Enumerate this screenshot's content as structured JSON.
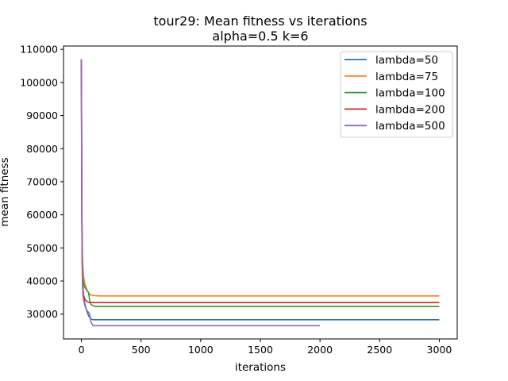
{
  "chart_data": {
    "type": "line",
    "title_lines": [
      "tour29: Mean fitness vs iterations",
      "alpha=0.5 k=6"
    ],
    "xlabel": "iterations",
    "ylabel": "mean fitness",
    "xlim": [
      -150,
      3150
    ],
    "ylim": [
      22500,
      111000
    ],
    "xticks": [
      0,
      500,
      1000,
      1500,
      2000,
      2500,
      3000
    ],
    "yticks": [
      30000,
      40000,
      50000,
      60000,
      70000,
      80000,
      90000,
      100000,
      110000
    ],
    "xtick_labels": [
      "0",
      "500",
      "1000",
      "1500",
      "2000",
      "2500",
      "3000"
    ],
    "ytick_labels": [
      "30000",
      "40000",
      "50000",
      "60000",
      "70000",
      "80000",
      "90000",
      "100000",
      "110000"
    ],
    "grid": false,
    "legend_position": "top-right",
    "series": [
      {
        "name": "lambda=50",
        "color": "#1f77b4",
        "x": [
          0,
          2,
          4,
          7,
          10,
          15,
          20,
          30,
          40,
          50,
          60,
          70,
          80,
          100,
          3000
        ],
        "y": [
          107000,
          80000,
          60000,
          48000,
          41000,
          37000,
          35000,
          33000,
          31500,
          30500,
          29500,
          29000,
          28500,
          28300,
          28300
        ]
      },
      {
        "name": "lambda=75",
        "color": "#ff7f0e",
        "x": [
          0,
          2,
          4,
          7,
          10,
          15,
          20,
          30,
          40,
          50,
          60,
          70,
          80,
          100,
          150,
          3000
        ],
        "y": [
          107000,
          82000,
          63000,
          52000,
          46000,
          43000,
          41000,
          39000,
          38000,
          37000,
          36500,
          36000,
          35800,
          35600,
          35500,
          35500
        ]
      },
      {
        "name": "lambda=100",
        "color": "#2ca02c",
        "x": [
          0,
          2,
          4,
          7,
          10,
          15,
          20,
          30,
          40,
          50,
          60,
          70,
          80,
          100,
          120,
          3000
        ],
        "y": [
          107000,
          80000,
          60000,
          48000,
          42000,
          40000,
          39000,
          38000,
          37500,
          37000,
          36500,
          34000,
          33000,
          32500,
          32300,
          32300
        ]
      },
      {
        "name": "lambda=200",
        "color": "#d62728",
        "x": [
          0,
          2,
          4,
          7,
          10,
          15,
          20,
          30,
          40,
          50,
          60,
          70,
          80,
          100,
          3000
        ],
        "y": [
          107000,
          78000,
          58000,
          46000,
          40000,
          37000,
          35500,
          34500,
          34000,
          33800,
          33600,
          33500,
          33500,
          33500,
          33500
        ]
      },
      {
        "name": "lambda=500",
        "color": "#9467bd",
        "x": [
          0,
          2,
          4,
          7,
          10,
          15,
          20,
          30,
          40,
          50,
          60,
          70,
          80,
          90,
          100,
          2000
        ],
        "y": [
          107000,
          78000,
          56000,
          44000,
          38000,
          35000,
          34000,
          32500,
          31500,
          31000,
          30500,
          30000,
          27500,
          27000,
          26500,
          26500
        ]
      }
    ]
  }
}
